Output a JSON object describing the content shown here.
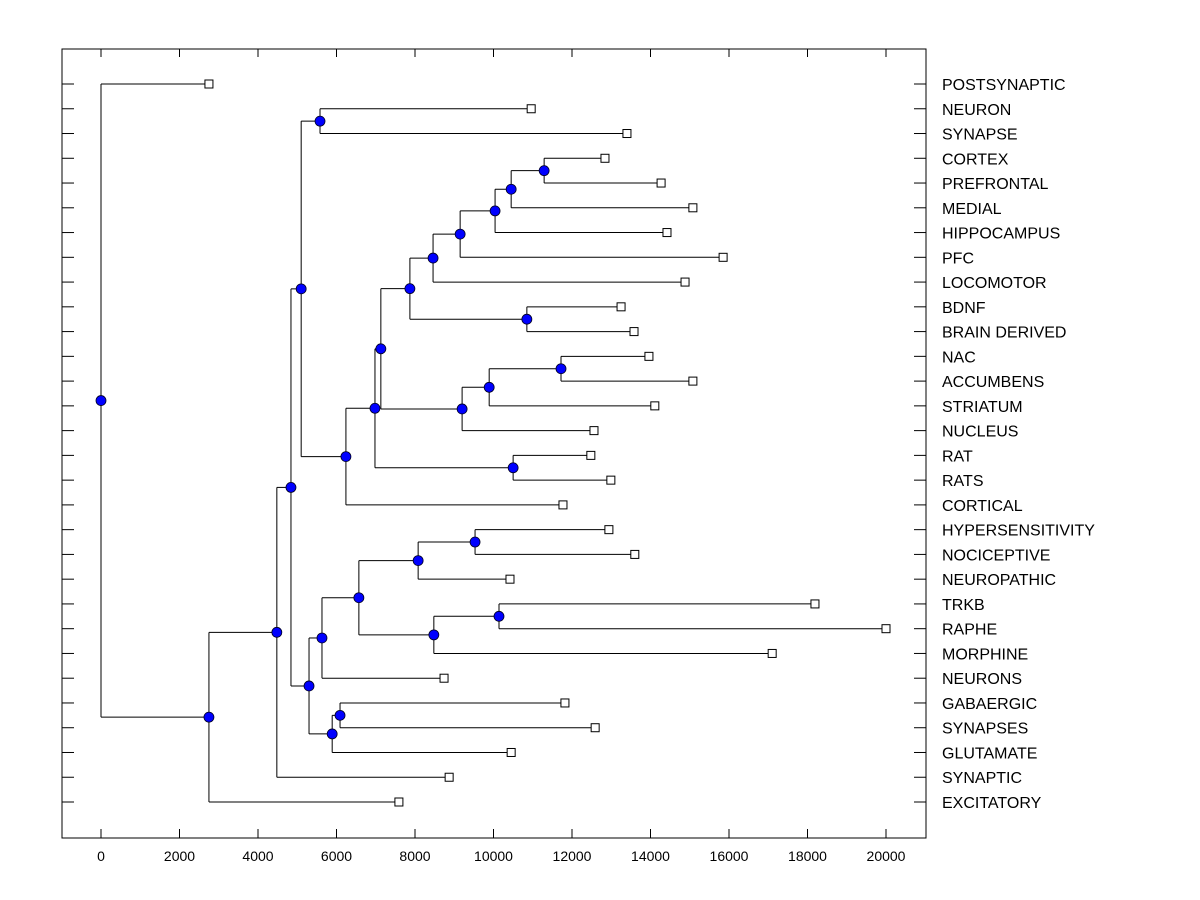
{
  "chart_data": {
    "type": "dendrogram",
    "title": "",
    "xlabel": "",
    "ylabel": "",
    "xlim": [
      -1000,
      21000
    ],
    "x_ticks": [
      0,
      2000,
      4000,
      6000,
      8000,
      10000,
      12000,
      14000,
      16000,
      18000,
      20000
    ],
    "x_tick_labels": [
      "0",
      "2000",
      "4000",
      "6000",
      "8000",
      "10000",
      "12000",
      "14000",
      "16000",
      "18000",
      "20000"
    ],
    "grid": false,
    "colors": {
      "node_fill": "#0000ff",
      "line": "#000000",
      "leaf_fill": "#ffffff"
    },
    "leaves": [
      {
        "id": "POSTSYNAPTIC",
        "label": "POSTSYNAPTIC",
        "x": 2750
      },
      {
        "id": "NEURON",
        "label": "NEURON",
        "x": 10960
      },
      {
        "id": "SYNAPSE",
        "label": "SYNAPSE",
        "x": 13400
      },
      {
        "id": "CORTEX",
        "label": "CORTEX",
        "x": 12840
      },
      {
        "id": "PREFRONTAL",
        "label": "PREFRONTAL",
        "x": 14270
      },
      {
        "id": "MEDIAL",
        "label": "MEDIAL",
        "x": 15080
      },
      {
        "id": "HIPPOCAMPUS",
        "label": "HIPPOCAMPUS",
        "x": 14420
      },
      {
        "id": "PFC",
        "label": "PFC",
        "x": 15850
      },
      {
        "id": "LOCOMOTOR",
        "label": "LOCOMOTOR",
        "x": 14880
      },
      {
        "id": "BDNF",
        "label": "BDNF",
        "x": 13250
      },
      {
        "id": "BRAIN_DERIVED",
        "label": "BRAIN DERIVED",
        "x": 13580
      },
      {
        "id": "NAC",
        "label": "NAC",
        "x": 13960
      },
      {
        "id": "ACCUMBENS",
        "label": "ACCUMBENS",
        "x": 15080
      },
      {
        "id": "STRIATUM",
        "label": "STRIATUM",
        "x": 14110
      },
      {
        "id": "NUCLEUS",
        "label": "NUCLEUS",
        "x": 12560
      },
      {
        "id": "RAT",
        "label": "RAT",
        "x": 12480
      },
      {
        "id": "RATS",
        "label": "RATS",
        "x": 12990
      },
      {
        "id": "CORTICAL",
        "label": "CORTICAL",
        "x": 11770
      },
      {
        "id": "HYPERSENSITIVITY",
        "label": "HYPERSENSITIVITY",
        "x": 12940
      },
      {
        "id": "NOCICEPTIVE",
        "label": "NOCICEPTIVE",
        "x": 13600
      },
      {
        "id": "NEUROPATHIC",
        "label": "NEUROPATHIC",
        "x": 10420
      },
      {
        "id": "TRKB",
        "label": "TRKB",
        "x": 18190
      },
      {
        "id": "RAPHE",
        "label": "RAPHE",
        "x": 20000
      },
      {
        "id": "MORPHINE",
        "label": "MORPHINE",
        "x": 17100
      },
      {
        "id": "NEURONS",
        "label": "NEURONS",
        "x": 8740
      },
      {
        "id": "GABAERGIC",
        "label": "GABAERGIC",
        "x": 11820
      },
      {
        "id": "SYNAPSES",
        "label": "SYNAPSES",
        "x": 12590
      },
      {
        "id": "GLUTAMATE",
        "label": "GLUTAMATE",
        "x": 10450
      },
      {
        "id": "SYNAPTIC",
        "label": "SYNAPTIC",
        "x": 8870
      },
      {
        "id": "EXCITATORY",
        "label": "EXCITATORY",
        "x": 7590
      }
    ],
    "nodes": [
      {
        "id": "n_neuron_synapse",
        "x": 5580,
        "children": [
          "NEURON",
          "SYNAPSE"
        ]
      },
      {
        "id": "n_cortex_prefrontal",
        "x": 11290,
        "children": [
          "CORTEX",
          "PREFRONTAL"
        ]
      },
      {
        "id": "n_medial",
        "x": 10450,
        "children": [
          "n_cortex_prefrontal",
          "MEDIAL"
        ]
      },
      {
        "id": "n_hippocampus",
        "x": 10040,
        "children": [
          "n_medial",
          "HIPPOCAMPUS"
        ]
      },
      {
        "id": "n_pfc",
        "x": 9150,
        "children": [
          "n_hippocampus",
          "PFC"
        ]
      },
      {
        "id": "n_locomotor",
        "x": 8460,
        "children": [
          "n_pfc",
          "LOCOMOTOR"
        ]
      },
      {
        "id": "n_bdnf",
        "x": 10850,
        "children": [
          "BDNF",
          "BRAIN_DERIVED"
        ]
      },
      {
        "id": "n_cortex_group",
        "x": 7870,
        "children": [
          "n_locomotor",
          "n_bdnf"
        ]
      },
      {
        "id": "n_nac_accumbens",
        "x": 11720,
        "children": [
          "NAC",
          "ACCUMBENS"
        ]
      },
      {
        "id": "n_striatum",
        "x": 9890,
        "children": [
          "n_nac_accumbens",
          "STRIATUM"
        ]
      },
      {
        "id": "n_nucleus",
        "x": 9200,
        "children": [
          "n_striatum",
          "NUCLEUS"
        ]
      },
      {
        "id": "n_cortex_nucleus",
        "x": 7130,
        "children": [
          "n_cortex_group",
          "n_nucleus"
        ]
      },
      {
        "id": "n_rat",
        "x": 10500,
        "children": [
          "RAT",
          "RATS"
        ]
      },
      {
        "id": "n_with_rat",
        "x": 6980,
        "children": [
          "n_cortex_nucleus",
          "n_rat"
        ]
      },
      {
        "id": "n_cortical",
        "x": 6240,
        "children": [
          "n_with_rat",
          "CORTICAL"
        ]
      },
      {
        "id": "n_upper",
        "x": 5100,
        "children": [
          "n_neuron_synapse",
          "n_cortical"
        ]
      },
      {
        "id": "n_hyper_noci",
        "x": 9530,
        "children": [
          "HYPERSENSITIVITY",
          "NOCICEPTIVE"
        ]
      },
      {
        "id": "n_neuropathic",
        "x": 8080,
        "children": [
          "n_hyper_noci",
          "NEUROPATHIC"
        ]
      },
      {
        "id": "n_trkb_raphe",
        "x": 10140,
        "children": [
          "TRKB",
          "RAPHE"
        ]
      },
      {
        "id": "n_morphine",
        "x": 8480,
        "children": [
          "n_trkb_raphe",
          "MORPHINE"
        ]
      },
      {
        "id": "n_pain_group",
        "x": 6570,
        "children": [
          "n_neuropathic",
          "n_morphine"
        ]
      },
      {
        "id": "n_neurons",
        "x": 5630,
        "children": [
          "n_pain_group",
          "NEURONS"
        ]
      },
      {
        "id": "n_gaba_synapses",
        "x": 6090,
        "children": [
          "GABAERGIC",
          "SYNAPSES"
        ]
      },
      {
        "id": "n_glutamate",
        "x": 5890,
        "children": [
          "n_gaba_synapses",
          "GLUTAMATE"
        ]
      },
      {
        "id": "n_lower_mid",
        "x": 5300,
        "children": [
          "n_neurons",
          "n_glutamate"
        ]
      },
      {
        "id": "n_big",
        "x": 4840,
        "children": [
          "n_upper",
          "n_lower_mid"
        ]
      },
      {
        "id": "n_synaptic",
        "x": 4480,
        "children": [
          "n_big",
          "SYNAPTIC"
        ]
      },
      {
        "id": "n_excitatory",
        "x": 2750,
        "children": [
          "n_synaptic",
          "EXCITATORY"
        ]
      },
      {
        "id": "n_root",
        "x": 0,
        "children": [
          "POSTSYNAPTIC",
          "n_excitatory"
        ]
      }
    ],
    "root": "n_root",
    "legend": null
  }
}
